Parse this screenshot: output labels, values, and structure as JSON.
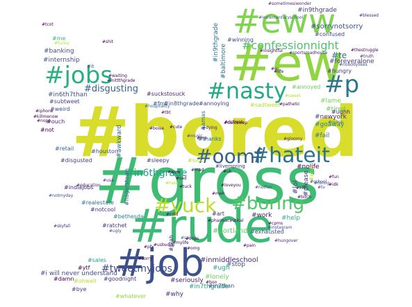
{
  "words": [
    {
      "text": "#bored",
      "color": "#d7dd2a"
    },
    {
      "text": "#gross",
      "color": "#3fbc73"
    },
    {
      "text": "#rude",
      "color": "#3bbb75"
    },
    {
      "text": "#ew",
      "color": "#91d542"
    },
    {
      "text": "#eww",
      "color": "#7fd34e"
    },
    {
      "text": "#job",
      "color": "#3b518b"
    },
    {
      "text": "#jobs",
      "color": "#2ab07f"
    },
    {
      "text": "#nasty",
      "color": "#26a884"
    },
    {
      "text": "#hateit",
      "color": "#2c718e"
    },
    {
      "text": "#oomf",
      "color": "#33628d"
    },
    {
      "text": "#yuck",
      "color": "#b8de29"
    },
    {
      "text": "#boring",
      "color": "#52c569"
    },
    {
      "text": "#p",
      "color": "#2a788e"
    },
    {
      "text": "#confessionnight",
      "color": "#4ec36b"
    },
    {
      "text": "#disgusting",
      "color": "#355f8d"
    },
    {
      "text": "#in6thgrade",
      "color": "#1fa088"
    },
    {
      "text": "#tweetmyjobs",
      "color": "#3e4a89"
    },
    {
      "text": "#in9thgrade",
      "color": "#433e85"
    },
    {
      "text": "#sorrynotsorry",
      "color": "#3a548c"
    },
    {
      "text": "#foreveralone",
      "color": "#453882"
    },
    {
      "text": "#te",
      "color": "#2d708e"
    },
    {
      "text": "#confused",
      "color": "#404387"
    },
    {
      "text": "#hungry",
      "color": "#46337e"
    },
    {
      "text": "#winning",
      "color": "#3f4889"
    },
    {
      "text": "#annoyed",
      "color": "#6ccd5a"
    },
    {
      "text": "#lame",
      "color": "#7ad151"
    },
    {
      "text": "#tired",
      "color": "#5ec962"
    },
    {
      "text": "#newyork",
      "color": "#453581"
    },
    {
      "text": "#ughh",
      "color": "#482475"
    },
    {
      "text": "#fail",
      "color": "#2a768e"
    },
    {
      "text": "#goaway",
      "color": "#25838e"
    },
    {
      "text": "#help",
      "color": "#2db27d"
    },
    {
      "text": "#nolife",
      "color": "#440154"
    },
    {
      "text": "#lol",
      "color": "#3e4989"
    },
    {
      "text": "#please",
      "color": "#443a83"
    },
    {
      "text": "#work",
      "color": "#481769"
    },
    {
      "text": "#art",
      "color": "#472c7a"
    },
    {
      "text": "#portland",
      "color": "#5ec962"
    },
    {
      "text": "#exhausted",
      "color": "#404588"
    },
    {
      "text": "#lonely",
      "color": "#6ece58"
    },
    {
      "text": "#ugh",
      "color": "#20a386"
    },
    {
      "text": "#stop",
      "color": "#39558c"
    },
    {
      "text": "#inmiddleschool",
      "color": "#482677"
    },
    {
      "text": "#seriously",
      "color": "#481c6e"
    },
    {
      "text": "#in7thgrade",
      "color": "#1e9b8a"
    },
    {
      "text": "#why",
      "color": "#472a7a"
    },
    {
      "text": "#internship",
      "color": "#3e4c8a"
    },
    {
      "text": "#banking",
      "color": "#3e4c8a"
    },
    {
      "text": "#me",
      "color": "#3bbb75"
    },
    {
      "text": "#it",
      "color": "#39568c"
    },
    {
      "text": "#in6th7than",
      "color": "#3a538b"
    },
    {
      "text": "#subtweet",
      "color": "#414287"
    },
    {
      "text": "#weird",
      "color": "#3d4e8a"
    },
    {
      "text": "#ouch",
      "color": "#481a6c"
    },
    {
      "text": "#retail",
      "color": "#31668e"
    },
    {
      "text": "#not",
      "color": "#440154"
    },
    {
      "text": "#houston",
      "color": "#3b528b"
    },
    {
      "text": "#disgusted",
      "color": "#423f85"
    },
    {
      "text": "#awkward",
      "color": "#31678e"
    },
    {
      "text": "#suckstosuck",
      "color": "#482173"
    },
    {
      "text": "#fml",
      "color": "#39568c"
    },
    {
      "text": "#in8thgrade",
      "color": "#3b528b"
    },
    {
      "text": "#annoying",
      "color": "#414287"
    },
    {
      "text": "#sadtweet",
      "color": "#b5de2b"
    },
    {
      "text": "#thanks",
      "color": "#2c728e"
    },
    {
      "text": "#sleepy",
      "color": "#453781"
    },
    {
      "text": "#sick",
      "color": "#b5de2b"
    },
    {
      "text": "#indiajobs",
      "color": "#482576"
    },
    {
      "text": "#realestate",
      "color": "#2c738e"
    },
    {
      "text": "#notcool",
      "color": "#472d7b"
    },
    {
      "text": "#ratchet",
      "color": "#46307e"
    },
    {
      "text": "#hagerstown",
      "color": "#33638d"
    },
    {
      "text": "#bethesda",
      "color": "#27808e"
    },
    {
      "text": "#blah",
      "color": "#463480"
    },
    {
      "text": "#sales",
      "color": "#20a386"
    },
    {
      "text": "#ytf",
      "color": "#440154"
    },
    {
      "text": "#i will never understand",
      "color": "#3e4989"
    },
    {
      "text": "#ohwell",
      "color": "#b5de2b"
    },
    {
      "text": "#goodnight",
      "color": "#46327e"
    },
    {
      "text": "#bye",
      "color": "#433d84"
    },
    {
      "text": "#damn",
      "color": "#440154"
    },
    {
      "text": "#whatever",
      "color": "#8fd744"
    },
    {
      "text": "#in7than",
      "color": "#3b528b"
    },
    {
      "text": "#baltimore",
      "color": "#2d708e"
    },
    {
      "text": "#in9thgrade",
      "color": "#2a768e"
    },
    {
      "text": "#amas",
      "color": "#31688e"
    },
    {
      "text": "#eno",
      "color": "#b5de2b"
    },
    {
      "text": "#liverspring",
      "color": "#46307e"
    },
    {
      "text": "#sometimesiwonder",
      "color": "#482878"
    },
    {
      "text": "#inelementaryschool",
      "color": "#3b528b"
    },
    {
      "text": "#blessed",
      "color": "#482878"
    },
    {
      "text": "#sportsroadhouse",
      "color": "#482475"
    },
    {
      "text": "#thestruggle",
      "color": "#440154"
    },
    {
      "text": "#dying",
      "color": "#482173"
    },
    {
      "text": "#mp",
      "color": "#440154"
    },
    {
      "text": "#ic",
      "color": "#440154"
    },
    {
      "text": "#truth",
      "color": "#482878"
    },
    {
      "text": "#nobodylikes",
      "color": "#3e4989"
    },
    {
      "text": "#pathetic",
      "color": "#440154"
    },
    {
      "text": "#hospitality",
      "color": "#31688e"
    },
    {
      "text": "#instagram",
      "color": "#3b528b"
    },
    {
      "text": "#hungover",
      "color": "#482878"
    },
    {
      "text": "#skyfall",
      "color": "#482878"
    },
    {
      "text": "#education",
      "color": "#482878"
    },
    {
      "text": "#loveyou",
      "color": "#440154"
    },
    {
      "text": "#notfair",
      "color": "#3e4989"
    },
    {
      "text": "#pharmaceutical",
      "color": "#440154"
    },
    {
      "text": "#insightful",
      "color": "#440154"
    },
    {
      "text": "#sweet",
      "color": "#b5de2b"
    },
    {
      "text": "#gloomy",
      "color": "#482878"
    },
    {
      "text": "#nurse",
      "color": "#31688e"
    },
    {
      "text": "#fun",
      "color": "#440154"
    },
    {
      "text": "#idk",
      "color": "#440154"
    },
    {
      "text": "#tv",
      "color": "#3e4989"
    },
    {
      "text": "#life",
      "color": "#440154"
    },
    {
      "text": "#mad",
      "color": "#440154"
    },
    {
      "text": "#usa",
      "color": "#482878"
    },
    {
      "text": "#uk",
      "color": "#440154"
    },
    {
      "text": "#tuck",
      "color": "#440154"
    },
    {
      "text": "#ugly",
      "color": "#3b528b"
    },
    {
      "text": "#cold",
      "color": "#440154"
    },
    {
      "text": "#boo",
      "color": "#440154"
    },
    {
      "text": "#omg",
      "color": "#440154"
    },
    {
      "text": "#spill",
      "color": "#31688e"
    },
    {
      "text": "#mylife",
      "color": "#440154"
    },
    {
      "text": "#kill",
      "color": "#440154"
    },
    {
      "text": "#school",
      "color": "#3e4989"
    },
    {
      "text": "#bitch",
      "color": "#440154"
    },
    {
      "text": "#cute",
      "color": "#440154"
    },
    {
      "text": "#boise",
      "color": "#440154"
    },
    {
      "text": "#tcot",
      "color": "#440154"
    },
    {
      "text": "#funny",
      "color": "#b5de2b"
    },
    {
      "text": "#shit",
      "color": "#440154"
    },
    {
      "text": "#hate",
      "color": "#b5de2b"
    },
    {
      "text": "#wow",
      "color": "#440154"
    },
    {
      "text": "#sad",
      "color": "#440154"
    },
    {
      "text": "#oops",
      "color": "#440154"
    },
    {
      "text": "#pain",
      "color": "#440154"
    },
    {
      "text": "#killmenow",
      "color": "#440154"
    },
    {
      "text": "#nope",
      "color": "#440154"
    },
    {
      "text": "#iphone",
      "color": "#440154"
    },
    {
      "text": "#tbt",
      "color": "#440154"
    },
    {
      "text": "#notmyday",
      "color": "#3e4989"
    },
    {
      "text": "#waiting",
      "color": "#440154"
    },
    {
      "text": "#inittthgrade",
      "color": "#440154"
    },
    {
      "text": "#dcfreak",
      "color": "#440154"
    },
    {
      "text": "#music",
      "color": "#3e4989"
    },
    {
      "text": "#cantsleep",
      "color": "#440154"
    },
    {
      "text": "#pfx",
      "color": "#440154"
    },
    {
      "text": "#usbuddy",
      "color": "#440154"
    },
    {
      "text": "#sorry",
      "color": "#440154"
    },
    {
      "text": "#hiring",
      "color": "#3e4989"
    },
    {
      "text": "#meh",
      "color": "#440154"
    },
    {
      "text": "#cpms",
      "color": "#440154"
    }
  ]
}
